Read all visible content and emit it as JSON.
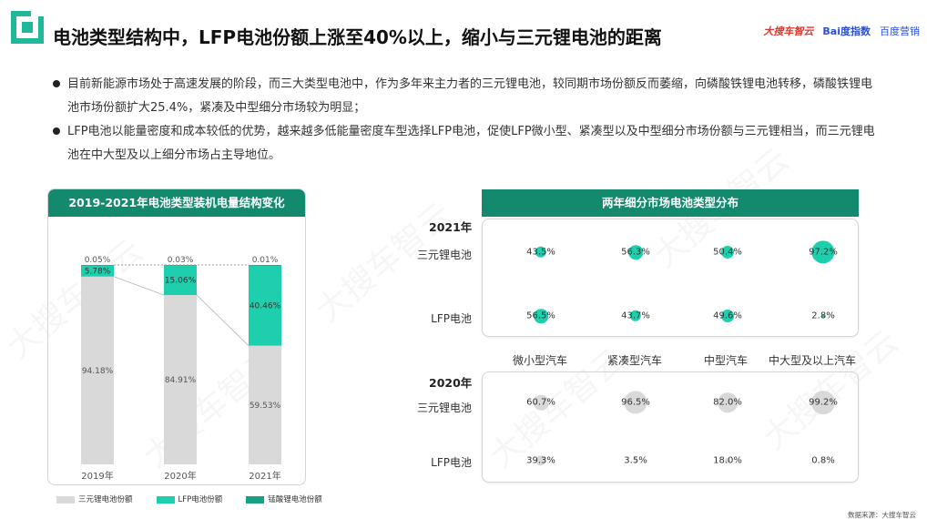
{
  "header": {
    "title": "电池类型结构中，LFP电池份额上涨至40%以上，缩小与三元锂电池的距离",
    "brand_1": "大搜车智云",
    "brand_2": "Bai度指数",
    "brand_3": "百度营销"
  },
  "bullets": [
    "目前新能源市场处于高速发展的阶段，而三大类型电池中，作为多年来主力者的三元锂电池，较同期市场份额反而萎缩，向磷酸铁锂电池转移，磷酸铁锂电池市场份额扩大25.4%，紧凑及中型细分市场较为明显；",
    "LFP电池以能量密度和成本较低的优势，越来越多低能量密度车型选择LFP电池，促使LFP微小型、紧凑型以及中型细分市场份额与三元锂相当，而三元锂电池在中大型及以上细分市场占主导地位。"
  ],
  "colors": {
    "accent": "#13896e",
    "ternary": "#d9d9d9",
    "lfp": "#1ecfae",
    "lmo": "#18a084"
  },
  "watermark": "大搜车智云",
  "source": "数据来源：大搜车智云",
  "chart_data": [
    {
      "type": "bar",
      "stacked": true,
      "title": "2019-2021年电池类型装机电量结构变化",
      "categories": [
        "2019年",
        "2020年",
        "2021年"
      ],
      "series": [
        {
          "name": "三元锂电池份额",
          "values": [
            94.18,
            84.91,
            59.53
          ],
          "labels": [
            "94.18%",
            "84.91%",
            "59.53%"
          ]
        },
        {
          "name": "LFP电池份额",
          "values": [
            5.78,
            15.06,
            40.46
          ],
          "labels": [
            "5.78%",
            "15.06%",
            "40.46%"
          ]
        },
        {
          "name": "锰酸锂电池份额",
          "values": [
            0.05,
            0.03,
            0.01
          ],
          "labels": [
            "0.05%",
            "0.03%",
            "0.01%"
          ]
        }
      ],
      "ylim": [
        0,
        100
      ]
    },
    {
      "type": "bubble",
      "title": "两年细分市场电池类型分布",
      "categories": [
        "微小型汽车",
        "紧凑型汽车",
        "中型汽车",
        "中大型及以上汽车"
      ],
      "panels": [
        {
          "year": "2021年",
          "rows": [
            {
              "name": "三元锂电池",
              "values": [
                43.5,
                56.3,
                50.4,
                97.2
              ],
              "labels": [
                "43.5%",
                "56.3%",
                "50.4%",
                "97.2%"
              ]
            },
            {
              "name": "LFP电池",
              "values": [
                56.5,
                43.7,
                49.6,
                2.8
              ],
              "labels": [
                "56.5%",
                "43.7%",
                "49.6%",
                "2.8%"
              ]
            }
          ]
        },
        {
          "year": "2020年",
          "rows": [
            {
              "name": "三元锂电池",
              "values": [
                60.7,
                96.5,
                82.0,
                99.2
              ],
              "labels": [
                "60.7%",
                "96.5%",
                "82.0%",
                "99.2%"
              ]
            },
            {
              "name": "LFP电池",
              "values": [
                39.3,
                3.5,
                18.0,
                0.8
              ],
              "labels": [
                "39.3%",
                "3.5%",
                "18.0%",
                "0.8%"
              ]
            }
          ]
        }
      ]
    }
  ]
}
